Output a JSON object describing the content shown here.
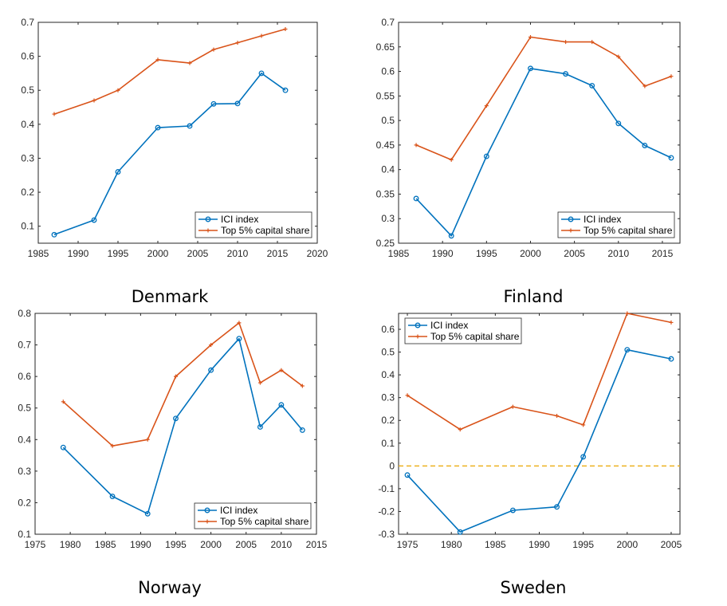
{
  "colors": {
    "ici": "#0072BD",
    "top5": "#D95319",
    "zero_line": "#EDB120",
    "axis": "#262626"
  },
  "chart_data": [
    {
      "type": "line",
      "title": "Denmark",
      "grid": false,
      "legend_placement": "bottom-right",
      "xlim": [
        1985,
        2020
      ],
      "ylim": [
        0.05,
        0.7
      ],
      "xticks": [
        1985,
        1990,
        1995,
        2000,
        2005,
        2010,
        2015,
        2020
      ],
      "yticks": [
        0.1,
        0.2,
        0.3,
        0.4,
        0.5,
        0.6,
        0.7
      ],
      "series": [
        {
          "name": "ICI index",
          "marker": "circle",
          "x": [
            1987,
            1992,
            1995,
            2000,
            2004,
            2007,
            2010,
            2013,
            2016
          ],
          "y": [
            0.075,
            0.118,
            0.26,
            0.39,
            0.395,
            0.46,
            0.461,
            0.55,
            0.5
          ]
        },
        {
          "name": "Top 5% capital share",
          "marker": "plus",
          "x": [
            1987,
            1992,
            1995,
            2000,
            2004,
            2007,
            2010,
            2013,
            2016
          ],
          "y": [
            0.43,
            0.47,
            0.5,
            0.59,
            0.58,
            0.62,
            0.64,
            0.66,
            0.68
          ]
        }
      ]
    },
    {
      "type": "line",
      "title": "Finland",
      "grid": false,
      "legend_placement": "bottom-right",
      "xlim": [
        1985,
        2017
      ],
      "ylim": [
        0.25,
        0.7
      ],
      "xticks": [
        1985,
        1990,
        1995,
        2000,
        2005,
        2010,
        2015
      ],
      "yticks": [
        0.25,
        0.3,
        0.35,
        0.4,
        0.45,
        0.5,
        0.55,
        0.6,
        0.65,
        0.7
      ],
      "series": [
        {
          "name": "ICI index",
          "marker": "circle",
          "x": [
            1987,
            1991,
            1995,
            2000,
            2004,
            2007,
            2010,
            2013,
            2016
          ],
          "y": [
            0.341,
            0.265,
            0.427,
            0.606,
            0.595,
            0.571,
            0.494,
            0.449,
            0.424
          ]
        },
        {
          "name": "Top 5% capital share",
          "marker": "plus",
          "x": [
            1987,
            1991,
            1995,
            2000,
            2004,
            2007,
            2010,
            2013,
            2016
          ],
          "y": [
            0.45,
            0.42,
            0.53,
            0.67,
            0.66,
            0.66,
            0.63,
            0.57,
            0.59
          ]
        }
      ]
    },
    {
      "type": "line",
      "title": "Norway",
      "grid": false,
      "legend_placement": "bottom-right",
      "xlim": [
        1975,
        2015
      ],
      "ylim": [
        0.1,
        0.8
      ],
      "xticks": [
        1975,
        1980,
        1985,
        1990,
        1995,
        2000,
        2005,
        2010,
        2015
      ],
      "yticks": [
        0.1,
        0.2,
        0.3,
        0.4,
        0.5,
        0.6,
        0.7,
        0.8
      ],
      "series": [
        {
          "name": "ICI index",
          "marker": "circle",
          "x": [
            1979,
            1986,
            1991,
            1995,
            2000,
            2004,
            2007,
            2010,
            2013
          ],
          "y": [
            0.375,
            0.22,
            0.165,
            0.467,
            0.62,
            0.72,
            0.44,
            0.51,
            0.43
          ]
        },
        {
          "name": "Top 5% capital share",
          "marker": "plus",
          "x": [
            1979,
            1986,
            1991,
            1995,
            2000,
            2004,
            2007,
            2010,
            2013
          ],
          "y": [
            0.52,
            0.38,
            0.4,
            0.6,
            0.7,
            0.77,
            0.58,
            0.62,
            0.57
          ]
        }
      ]
    },
    {
      "type": "line",
      "title": "Sweden",
      "grid": false,
      "legend_placement": "top-left",
      "xlim": [
        1974,
        2006
      ],
      "ylim": [
        -0.3,
        0.67
      ],
      "xticks": [
        1975,
        1980,
        1985,
        1990,
        1995,
        2000,
        2005
      ],
      "yticks": [
        -0.3,
        -0.2,
        -0.1,
        0,
        0.1,
        0.2,
        0.3,
        0.4,
        0.5,
        0.6
      ],
      "reference_line": {
        "y": 0,
        "style": "dashed"
      },
      "series": [
        {
          "name": "ICI index",
          "marker": "circle",
          "x": [
            1975,
            1981,
            1987,
            1992,
            1995,
            2000,
            2005
          ],
          "y": [
            -0.04,
            -0.29,
            -0.195,
            -0.18,
            0.04,
            0.51,
            0.47
          ]
        },
        {
          "name": "Top 5% capital share",
          "marker": "plus",
          "x": [
            1975,
            1981,
            1987,
            1992,
            1995,
            2000,
            2005
          ],
          "y": [
            0.31,
            0.16,
            0.26,
            0.22,
            0.18,
            0.67,
            0.63
          ]
        }
      ]
    }
  ]
}
